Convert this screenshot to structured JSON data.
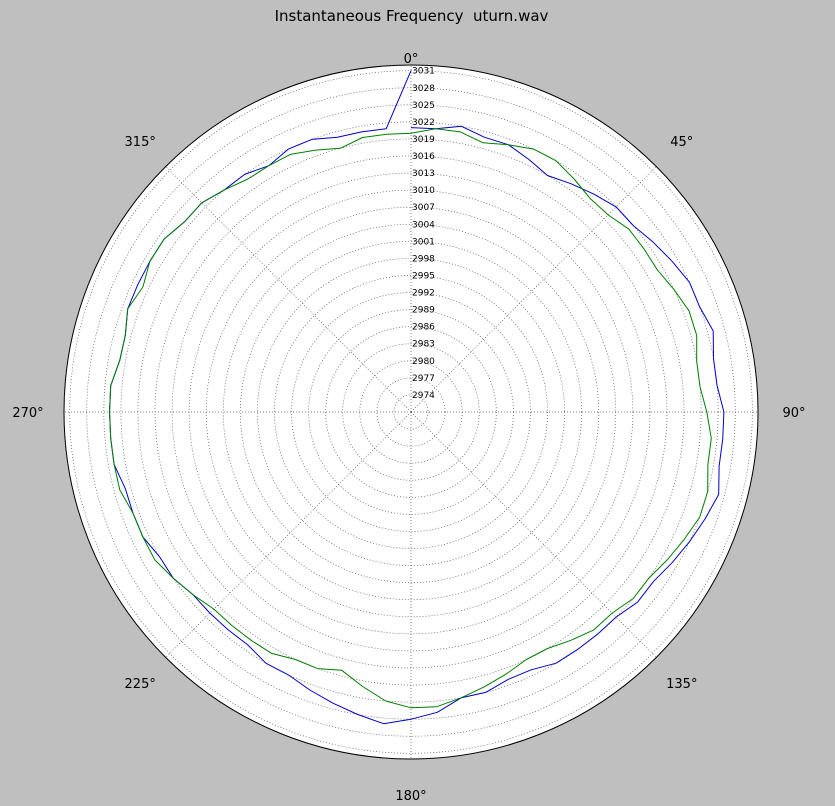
{
  "title": "Instantaneous Frequency  uturn.wav",
  "chart_data": {
    "type": "line",
    "projection": "polar",
    "title": "Instantaneous Frequency  uturn.wav",
    "theta_zero_location": "top",
    "theta_direction": "clockwise",
    "angle_tick_labels": [
      "0°",
      "45°",
      "90°",
      "135°",
      "180°",
      "225°",
      "270°",
      "315°"
    ],
    "radial_tick_labels": [
      "2974",
      "2977",
      "2980",
      "2983",
      "2986",
      "2989",
      "2992",
      "2995",
      "2998",
      "3001",
      "3004",
      "3007",
      "3010",
      "3013",
      "3016",
      "3019",
      "3022",
      "3025",
      "3028",
      "3031"
    ],
    "rlim": [
      2971,
      3032
    ],
    "grid": true,
    "series": [
      {
        "color": "#0000cc",
        "theta_deg": [
          0,
          5,
          10,
          15,
          20,
          25,
          30,
          35,
          40,
          45,
          50,
          55,
          60,
          65,
          70,
          75,
          80,
          85,
          90,
          95,
          100,
          105,
          110,
          115,
          120,
          125,
          130,
          135,
          140,
          145,
          150,
          155,
          160,
          165,
          170,
          175,
          180,
          185,
          190,
          195,
          200,
          205,
          210,
          215,
          220,
          225,
          230,
          235,
          240,
          245,
          250,
          255,
          260,
          265,
          270,
          275,
          280,
          285,
          290,
          295,
          300,
          305,
          310,
          315,
          320,
          325,
          330,
          335,
          340,
          345,
          350,
          355,
          360
        ],
        "r": [
          3021,
          3021,
          3022,
          3021,
          3021,
          3020,
          3019,
          3020,
          3021,
          3022,
          3022,
          3023,
          3024,
          3025,
          3025,
          3026,
          3025,
          3025,
          3026,
          3026,
          3026,
          3027,
          3026,
          3025,
          3024,
          3023,
          3023,
          3022,
          3022,
          3022,
          3022,
          3021,
          3021,
          3022,
          3022,
          3024,
          3025,
          3026,
          3025,
          3024,
          3023,
          3022,
          3022,
          3021,
          3021,
          3021,
          3021,
          3022,
          3022,
          3023,
          3023,
          3023,
          3024,
          3024,
          3024,
          3024,
          3023,
          3023,
          3024,
          3024,
          3024,
          3024,
          3023,
          3023,
          3022,
          3022,
          3021,
          3022,
          3022,
          3021,
          3021,
          3021,
          3031
        ]
      },
      {
        "color": "#007f00",
        "theta_deg": [
          0,
          5,
          10,
          15,
          20,
          25,
          30,
          35,
          40,
          45,
          50,
          55,
          60,
          65,
          70,
          75,
          80,
          85,
          90,
          95,
          100,
          105,
          110,
          115,
          120,
          125,
          130,
          135,
          140,
          145,
          150,
          155,
          160,
          165,
          170,
          175,
          180,
          185,
          190,
          195,
          200,
          205,
          210,
          215,
          220,
          225,
          230,
          235,
          240,
          245,
          250,
          255,
          260,
          265,
          270,
          275,
          280,
          285,
          290,
          295,
          300,
          305,
          310,
          315,
          320,
          325,
          330,
          335,
          340,
          345,
          350,
          355,
          360
        ],
        "r": [
          3020,
          3021,
          3021,
          3020,
          3021,
          3022,
          3022,
          3021,
          3020,
          3020,
          3021,
          3021,
          3021,
          3022,
          3023,
          3023,
          3022,
          3022,
          3023,
          3024,
          3024,
          3025,
          3025,
          3024,
          3023,
          3022,
          3022,
          3021,
          3021,
          3020,
          3019,
          3019,
          3020,
          3021,
          3022,
          3023,
          3023,
          3022,
          3020,
          3018,
          3019,
          3019,
          3020,
          3020,
          3020,
          3020,
          3021,
          3022,
          3023,
          3023,
          3023,
          3024,
          3024,
          3024,
          3024,
          3024,
          3023,
          3023,
          3024,
          3023,
          3024,
          3024,
          3023,
          3023,
          3022,
          3021,
          3021,
          3021,
          3020,
          3019,
          3020,
          3020,
          3020
        ]
      }
    ]
  }
}
